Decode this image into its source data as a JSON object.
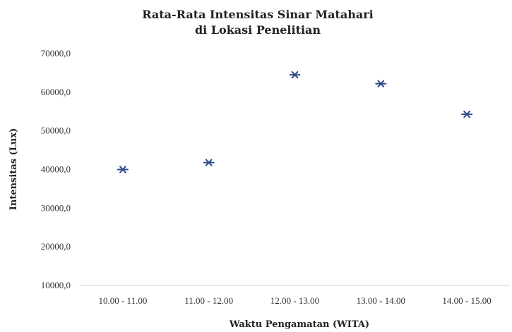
{
  "chart_data": {
    "type": "scatter",
    "title": [
      "Rata-Rata Intensitas Sinar Matahari",
      "di Lokasi Penelitian"
    ],
    "xlabel": "Waktu Pengamatan (WITA)",
    "ylabel": "Intensitas (Lux)",
    "categories": [
      "10.00 - 11.00",
      "11.00 - 12.00",
      "12.00 - 13.00",
      "13.00 - 14.00",
      "14.00 - 15.00"
    ],
    "values": [
      40000,
      41800,
      64500,
      62200,
      54300
    ],
    "ylim": [
      10000,
      70000
    ],
    "yticks": [
      "10000,0",
      "20000,0",
      "30000,0",
      "40000,0",
      "50000,0",
      "60000,0",
      "70000,0"
    ],
    "grid": false,
    "marker_color": "#2f4d8a"
  }
}
